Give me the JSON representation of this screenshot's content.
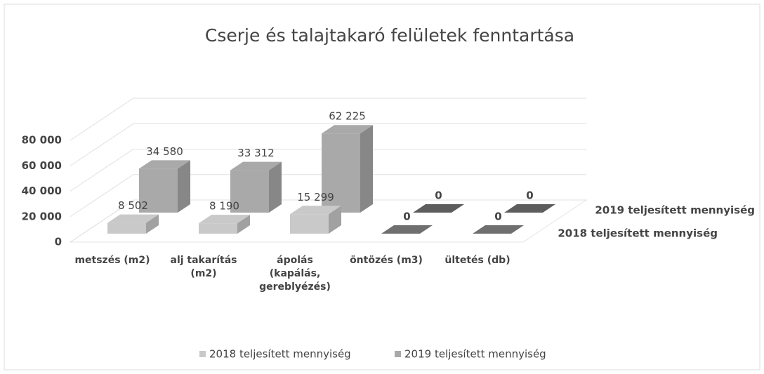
{
  "chart_data": {
    "type": "bar3d",
    "title": "Cserje és talajtakaró felületek fenntartása",
    "categories": [
      "metszés (m2)",
      "alj takarítás (m2)",
      "ápolás (kapálás, gereblyézés)",
      "öntözés (m3)",
      "ültetés (db)"
    ],
    "series": [
      {
        "name": "2018 teljesített mennyiség",
        "color": "#c9c9c9",
        "values": [
          8502,
          8190,
          15299,
          0,
          0
        ],
        "value_labels": [
          "8 502",
          "8 190",
          "15 299",
          "0",
          "0"
        ]
      },
      {
        "name": "2019 teljesített mennyiség",
        "color": "#a9a9a9",
        "values": [
          34580,
          33312,
          62225,
          0,
          0
        ],
        "value_labels": [
          "34 580",
          "33 312",
          "62 225",
          "0",
          "0"
        ]
      }
    ],
    "ylim": [
      0,
      80000
    ],
    "yticks": [
      0,
      {
        "value": 20000,
        "label": "20 000"
      },
      {
        "value": 40000,
        "label": "40 000"
      },
      {
        "value": 60000,
        "label": "60 000"
      },
      {
        "value": 80000,
        "label": "80 000"
      }
    ],
    "grid": true,
    "legend": "bottom"
  }
}
